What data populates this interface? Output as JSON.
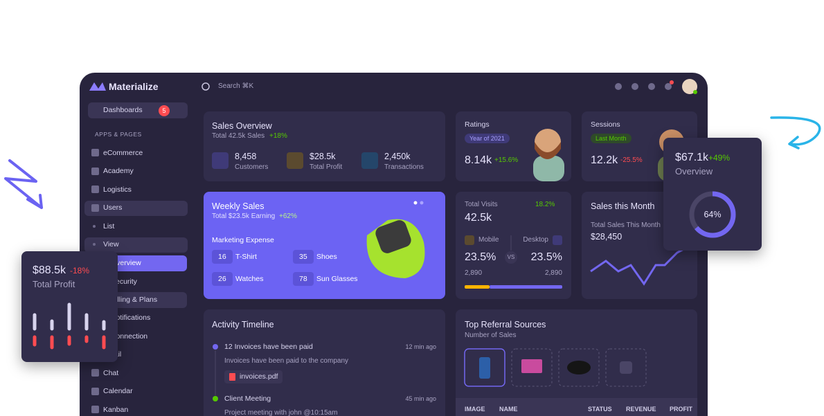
{
  "brand": "Materialize",
  "search": "Search ⌘K",
  "sidebar": {
    "dashboards": "Dashboards",
    "badge": "5",
    "section": "APPS & PAGES",
    "items": [
      "eCommerce",
      "Academy",
      "Logistics",
      "Users"
    ],
    "users_sub": [
      "List",
      "View"
    ],
    "view_sub": [
      "Overview",
      "Security",
      "Billing & Plans",
      "Notifications",
      "Connection"
    ],
    "more": [
      "Email",
      "Chat",
      "Calendar",
      "Kanban"
    ]
  },
  "sales_overview": {
    "title": "Sales Overview",
    "subtitle": "Total 42.5k Sales",
    "change": "+18%",
    "stats": [
      {
        "value": "8,458",
        "label": "Customers"
      },
      {
        "value": "$28.5k",
        "label": "Total Profit"
      },
      {
        "value": "2,450k",
        "label": "Transactions"
      }
    ]
  },
  "ratings": {
    "title": "Ratings",
    "chip": "Year of 2021",
    "value": "8.14k",
    "change": "+15.6%"
  },
  "sessions": {
    "title": "Sessions",
    "chip": "Last Month",
    "value": "12.2k",
    "change": "-25.5%"
  },
  "weekly_sales": {
    "title": "Weekly Sales",
    "subtitle": "Total $23.5k Earning",
    "change": "+62%",
    "section": "Marketing Expense",
    "items": [
      {
        "count": "16",
        "label": "T-Shirt"
      },
      {
        "count": "35",
        "label": "Shoes"
      },
      {
        "count": "26",
        "label": "Watches"
      },
      {
        "count": "78",
        "label": "Sun Glasses"
      }
    ]
  },
  "total_visits": {
    "title": "Total Visits",
    "change": "18.2%",
    "value": "42.5k",
    "mobile": "Mobile",
    "desktop": "Desktop",
    "mobile_pct": "23.5%",
    "vs": "VS",
    "desktop_pct": "23.5%",
    "mobile_count": "2,890",
    "desktop_count": "2,890"
  },
  "sales_month": {
    "title": "Sales this Month",
    "subtitle": "Total Sales This Month",
    "value": "$28,450"
  },
  "activity": {
    "title": "Activity Timeline",
    "events": [
      {
        "title": "12 Invoices have been paid",
        "time": "12 min ago",
        "desc": "Invoices have been paid to the company",
        "file": "invoices.pdf"
      },
      {
        "title": "Client Meeting",
        "time": "45 min ago",
        "desc": "Project meeting with john @10:15am"
      }
    ]
  },
  "referral": {
    "title": "Top Referral Sources",
    "subtitle": "Number of Sales",
    "columns": [
      "IMAGE",
      "NAME",
      "STATUS",
      "REVENUE",
      "PROFIT"
    ]
  },
  "profit_card": {
    "value": "$88.5k",
    "change": "-18%",
    "label": "Total Profit"
  },
  "overview_card": {
    "value": "$67.1k",
    "change": "+49%",
    "label": "Overview",
    "progress": 64,
    "progress_label": "64%"
  }
}
